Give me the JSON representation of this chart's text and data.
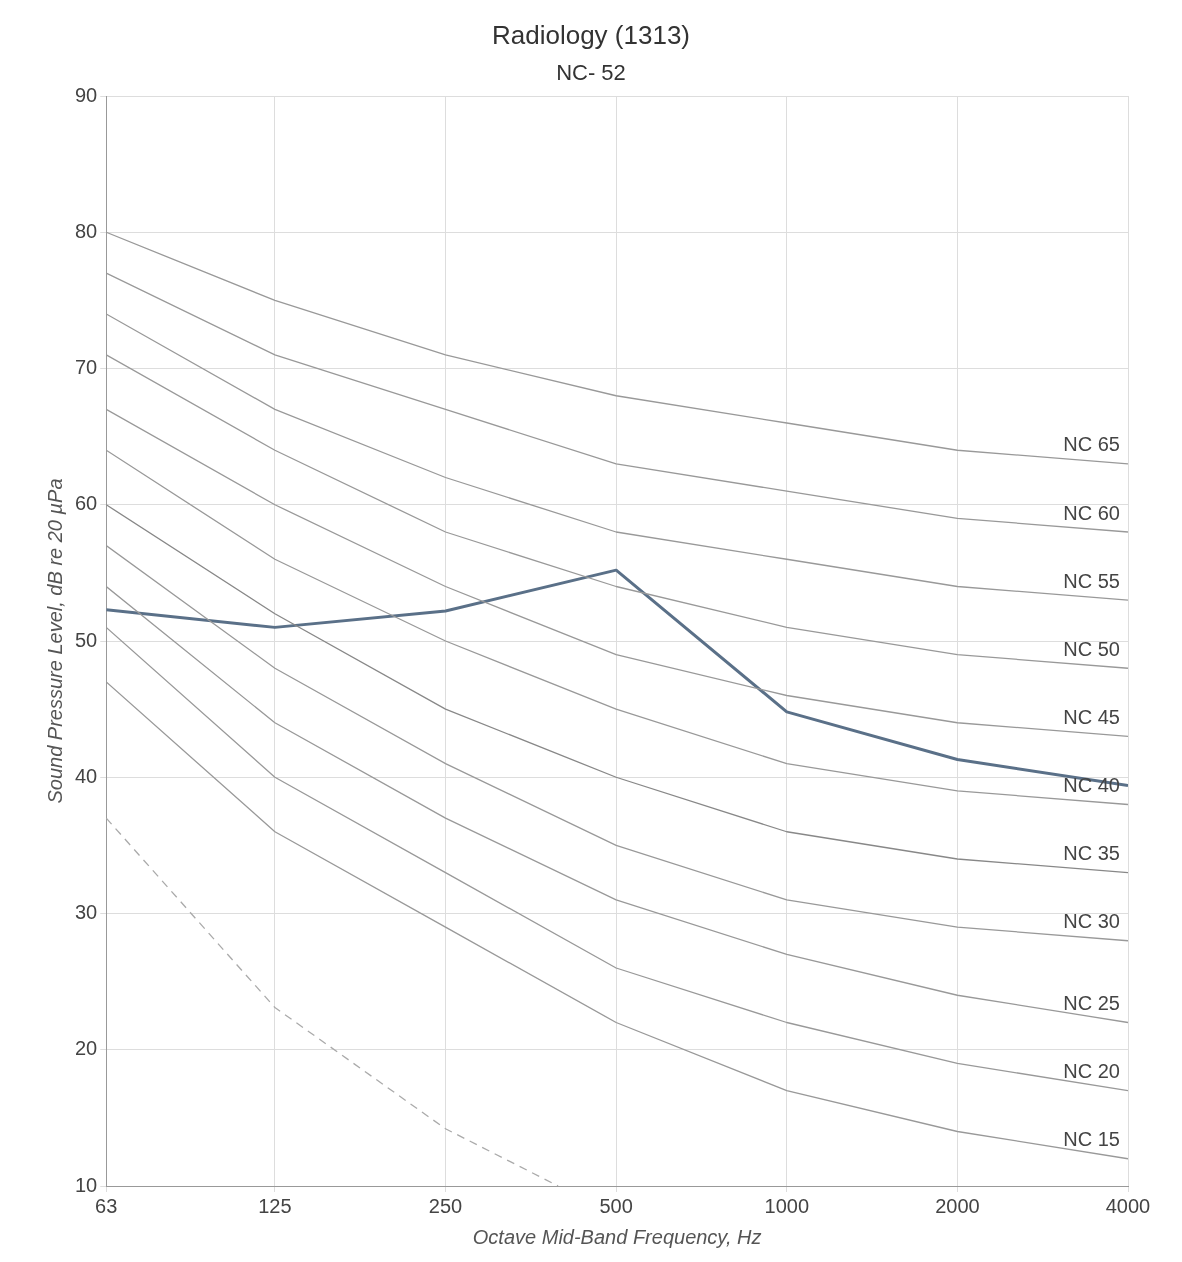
{
  "chart_data": {
    "type": "line",
    "title": "Radiology (1313)",
    "subtitle": "NC- 52",
    "xlabel": "Octave Mid-Band Frequency, Hz",
    "ylabel": "Sound Pressure Level, dB re 20 µPa",
    "x": [
      63,
      125,
      250,
      500,
      1000,
      2000,
      4000
    ],
    "log": "x",
    "xlim": [
      63,
      4000
    ],
    "xticks": [
      63,
      125,
      250,
      500,
      1000,
      2000,
      4000
    ],
    "ylim": [
      10,
      90
    ],
    "yticks": [
      10,
      20,
      30,
      40,
      50,
      60,
      70,
      80,
      90
    ],
    "grid": true,
    "legend": false,
    "marker": "none",
    "series": [
      {
        "name": "NC 65",
        "color": "#999999",
        "values": [
          80,
          75,
          71,
          68,
          66,
          64,
          63
        ]
      },
      {
        "name": "NC 60",
        "color": "#999999",
        "values": [
          77,
          71,
          67,
          63,
          61,
          59,
          58
        ]
      },
      {
        "name": "NC 55",
        "color": "#999999",
        "values": [
          74,
          67,
          62,
          58,
          56,
          54,
          53
        ]
      },
      {
        "name": "NC 50",
        "color": "#999999",
        "values": [
          71,
          64,
          58,
          54,
          51,
          49,
          48
        ]
      },
      {
        "name": "NC 45",
        "color": "#999999",
        "values": [
          67,
          60,
          54,
          49,
          46,
          44,
          43
        ]
      },
      {
        "name": "NC 40",
        "color": "#999999",
        "values": [
          64,
          56,
          50,
          45,
          41,
          39,
          38
        ]
      },
      {
        "name": "NC 35",
        "color": "#888888",
        "values": [
          60,
          52,
          45,
          40,
          36,
          34,
          33
        ]
      },
      {
        "name": "NC 30",
        "color": "#999999",
        "values": [
          57,
          48,
          41,
          35,
          31,
          29,
          28
        ]
      },
      {
        "name": "NC 25",
        "color": "#999999",
        "values": [
          54,
          44,
          37,
          31,
          27,
          24,
          22
        ]
      },
      {
        "name": "NC 20",
        "color": "#999999",
        "values": [
          51,
          40,
          33,
          26,
          22,
          19,
          17
        ]
      },
      {
        "name": "NC 15",
        "color": "#999999",
        "values": [
          47,
          36,
          29,
          22,
          17,
          14,
          12
        ]
      },
      {
        "color": "#aaaaaa",
        "line_style": "dashed",
        "x": [
          63,
          125,
          250,
          395
        ],
        "values": [
          37,
          23.1,
          14.2,
          10
        ]
      },
      {
        "color": "#5a7088",
        "values": [
          52.3,
          51,
          52.2,
          55.2,
          44.8,
          41.3,
          39.4
        ]
      }
    ]
  }
}
